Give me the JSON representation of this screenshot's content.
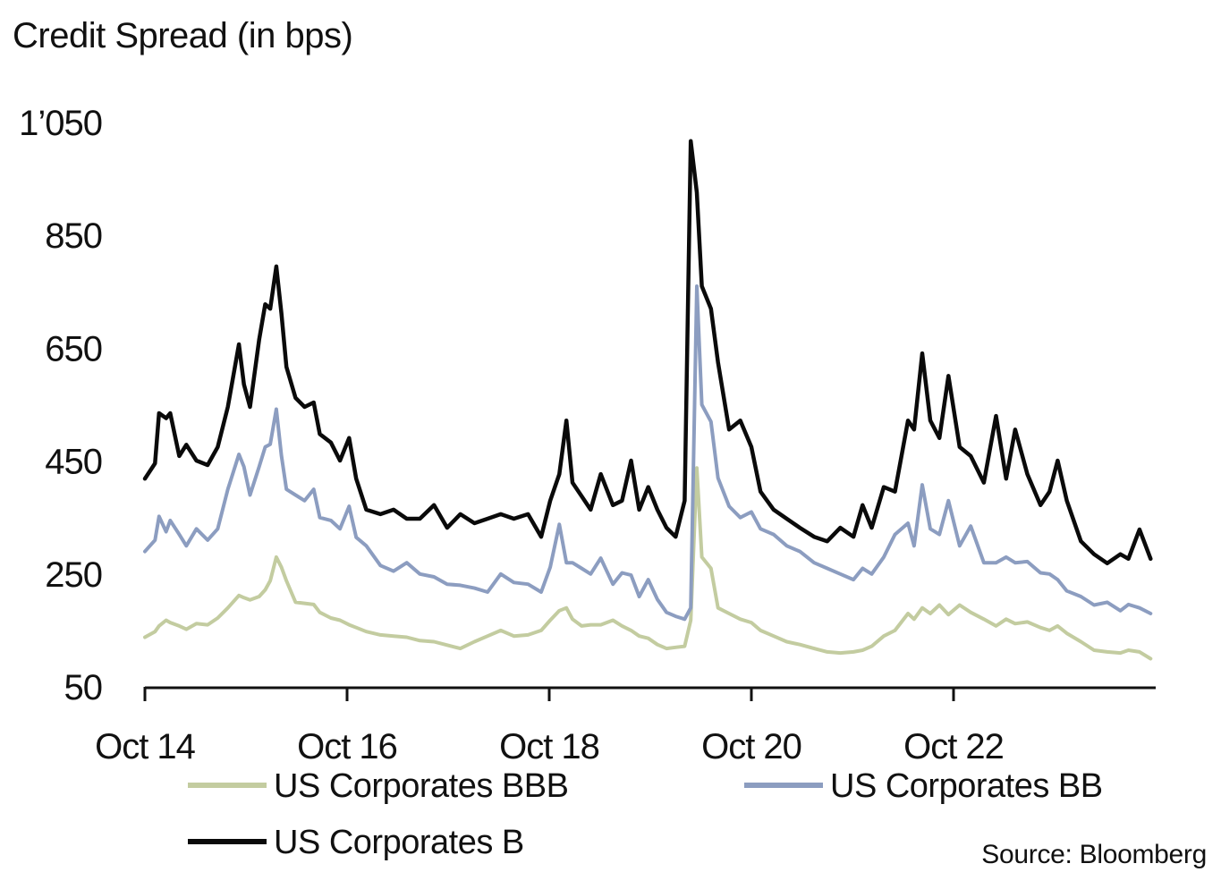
{
  "chart_data": {
    "type": "line",
    "title": "Credit Spread (in bps)",
    "xlabel": "",
    "ylabel": "Credit Spread (in bps)",
    "source": "Source: Bloomberg",
    "ylim": [
      50,
      1050
    ],
    "xlim": [
      0,
      10
    ],
    "x_unit": "years since Oct 2014",
    "yticks": [
      {
        "value": 50,
        "label": "50"
      },
      {
        "value": 250,
        "label": "250"
      },
      {
        "value": 450,
        "label": "450"
      },
      {
        "value": 650,
        "label": "650"
      },
      {
        "value": 850,
        "label": "850"
      },
      {
        "value": 1050,
        "label": "1’050"
      }
    ],
    "xticks": [
      {
        "value": 0,
        "label": "Oct 14"
      },
      {
        "value": 2,
        "label": "Oct 16"
      },
      {
        "value": 4,
        "label": "Oct 18"
      },
      {
        "value": 6,
        "label": "Oct 20"
      },
      {
        "value": 8,
        "label": "Oct 22"
      },
      {
        "value": 10,
        "label": ""
      }
    ],
    "grid": false,
    "legend_position": "bottom",
    "x": [
      0,
      0.1,
      0.14,
      0.21,
      0.25,
      0.34,
      0.41,
      0.51,
      0.62,
      0.72,
      0.82,
      0.93,
      0.98,
      1.04,
      1.13,
      1.19,
      1.24,
      1.3,
      1.35,
      1.4,
      1.49,
      1.58,
      1.67,
      1.73,
      1.84,
      1.93,
      2.02,
      2.09,
      2.19,
      2.33,
      2.46,
      2.59,
      2.72,
      2.86,
      2.99,
      3.12,
      3.26,
      3.39,
      3.52,
      3.65,
      3.79,
      3.92,
      4.01,
      4.1,
      4.17,
      4.23,
      4.32,
      4.41,
      4.51,
      4.63,
      4.72,
      4.81,
      4.89,
      4.98,
      5.07,
      5.16,
      5.25,
      5.34,
      5.4,
      5.46,
      5.51,
      5.6,
      5.67,
      5.78,
      5.89,
      6.0,
      6.09,
      6.22,
      6.35,
      6.48,
      6.62,
      6.75,
      6.88,
      7.01,
      7.1,
      7.19,
      7.31,
      7.42,
      7.55,
      7.61,
      7.69,
      7.77,
      7.86,
      7.95,
      8.06,
      8.17,
      8.3,
      8.42,
      8.52,
      8.61,
      8.73,
      8.86,
      8.95,
      9.03,
      9.12,
      9.26,
      9.39,
      9.52,
      9.65,
      9.73,
      9.84,
      9.95
    ],
    "series": [
      {
        "name": "US Corporates BBB",
        "color": "#c3cca0",
        "values": [
          138,
          148,
          158,
          168,
          164,
          158,
          152,
          162,
          160,
          172,
          190,
          212,
          208,
          204,
          210,
          222,
          238,
          280,
          262,
          238,
          200,
          198,
          196,
          182,
          172,
          168,
          160,
          155,
          148,
          142,
          140,
          138,
          132,
          130,
          124,
          118,
          130,
          140,
          150,
          140,
          142,
          150,
          168,
          185,
          190,
          170,
          158,
          160,
          160,
          168,
          158,
          150,
          140,
          136,
          125,
          118,
          120,
          122,
          168,
          438,
          280,
          260,
          190,
          180,
          170,
          164,
          150,
          140,
          130,
          125,
          118,
          112,
          110,
          112,
          115,
          122,
          140,
          150,
          180,
          170,
          190,
          180,
          195,
          178,
          195,
          182,
          170,
          158,
          170,
          162,
          165,
          155,
          150,
          158,
          145,
          130,
          115,
          112,
          110,
          115,
          112,
          100
        ]
      },
      {
        "name": "US Corporates BB",
        "color": "#8c9dc0",
        "values": [
          290,
          310,
          352,
          325,
          345,
          320,
          300,
          330,
          310,
          330,
          400,
          462,
          440,
          390,
          440,
          475,
          480,
          542,
          460,
          400,
          390,
          380,
          400,
          350,
          345,
          330,
          370,
          315,
          300,
          265,
          255,
          270,
          250,
          245,
          232,
          230,
          225,
          218,
          250,
          235,
          232,
          218,
          262,
          338,
          270,
          270,
          260,
          250,
          278,
          232,
          252,
          248,
          210,
          240,
          205,
          182,
          175,
          170,
          190,
          760,
          550,
          520,
          420,
          370,
          350,
          360,
          330,
          320,
          300,
          290,
          270,
          260,
          250,
          240,
          260,
          250,
          280,
          320,
          340,
          300,
          408,
          330,
          320,
          380,
          300,
          335,
          270,
          270,
          280,
          270,
          272,
          252,
          250,
          240,
          220,
          210,
          195,
          200,
          185,
          196,
          190,
          180
        ]
      },
      {
        "name": "US Corporates B",
        "color": "#0a0a0a",
        "values": [
          419,
          446,
          535,
          526,
          535,
          459,
          479,
          451,
          443,
          475,
          546,
          657,
          586,
          546,
          665,
          728,
          720,
          795,
          712,
          617,
          562,
          546,
          554,
          498,
          483,
          451,
          491,
          419,
          364,
          356,
          364,
          348,
          348,
          372,
          332,
          356,
          340,
          348,
          356,
          348,
          356,
          316,
          380,
          427,
          522,
          412,
          388,
          364,
          427,
          372,
          380,
          451,
          364,
          404,
          364,
          332,
          316,
          380,
          1017,
          926,
          760,
          720,
          625,
          506,
          522,
          475,
          396,
          364,
          348,
          332,
          316,
          308,
          332,
          316,
          372,
          332,
          404,
          396,
          522,
          506,
          641,
          522,
          491,
          601,
          475,
          459,
          412,
          530,
          419,
          506,
          427,
          372,
          396,
          451,
          380,
          308,
          285,
          269,
          285,
          277,
          329,
          277
        ]
      }
    ]
  }
}
